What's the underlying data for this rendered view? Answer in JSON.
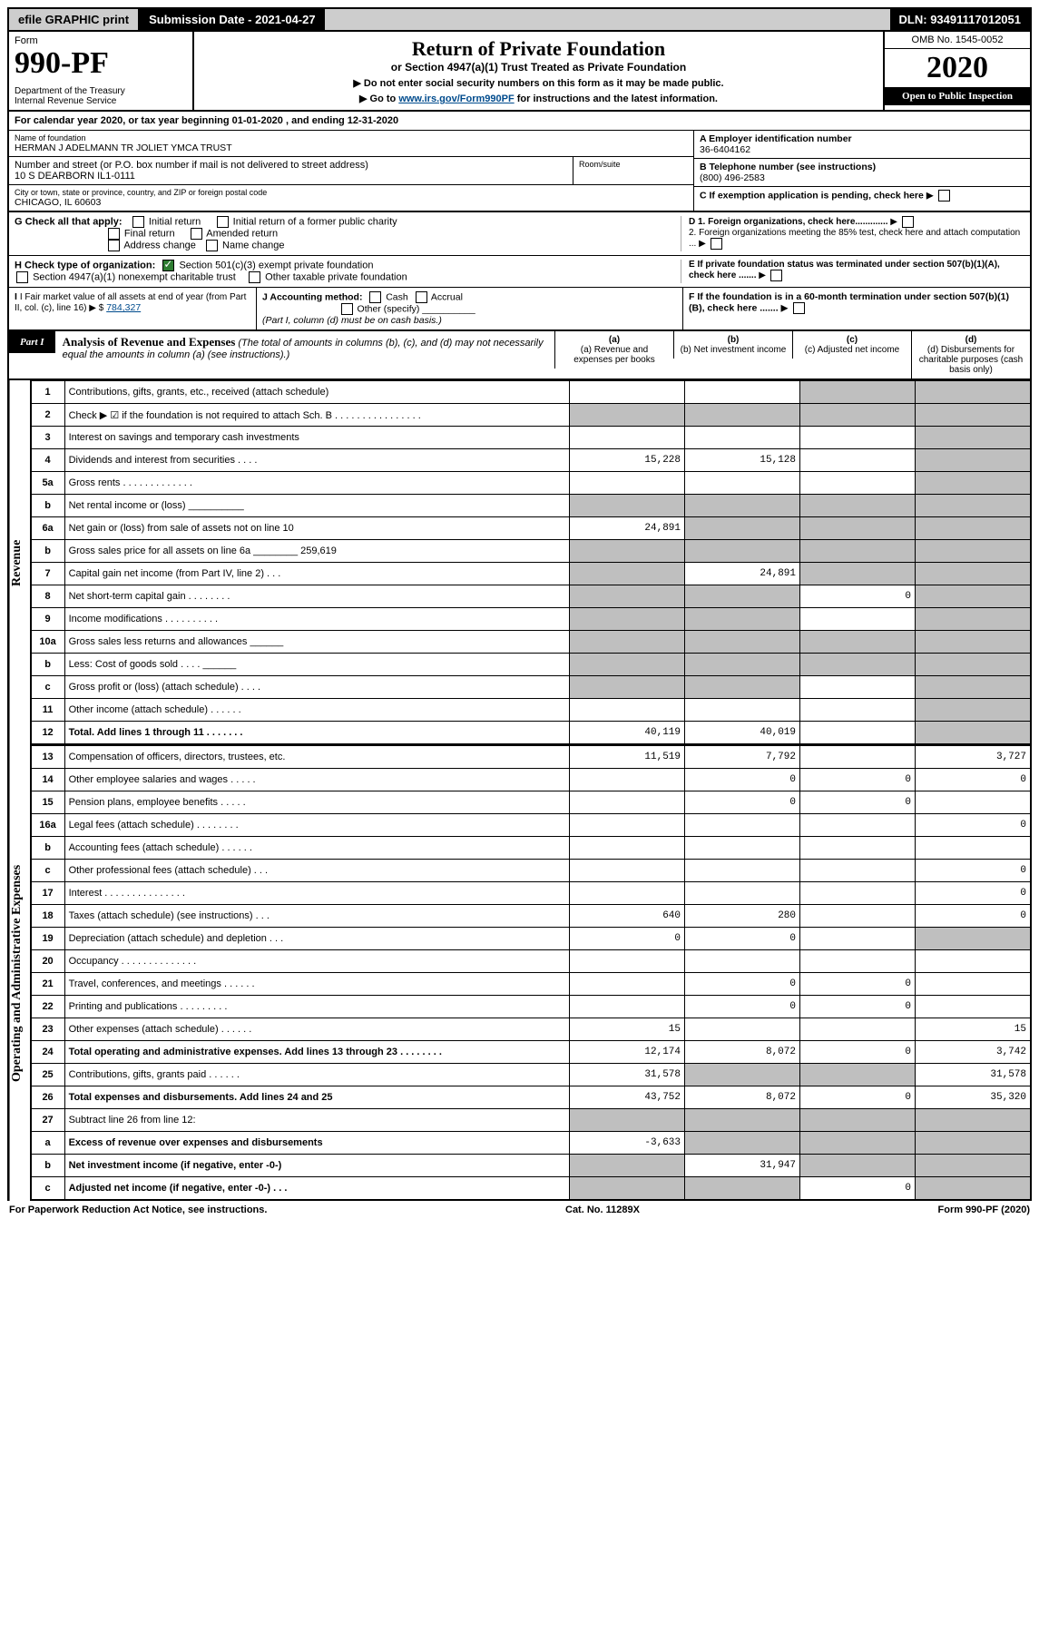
{
  "top": {
    "efile": "efile GRAPHIC print",
    "sub_label": "Submission Date - 2021-04-27",
    "dln": "DLN: 93491117012051"
  },
  "header": {
    "form": "Form",
    "number": "990-PF",
    "dept": "Department of the Treasury\nInternal Revenue Service",
    "title": "Return of Private Foundation",
    "subtitle": "or Section 4947(a)(1) Trust Treated as Private Foundation",
    "instr1": "▶ Do not enter social security numbers on this form as it may be made public.",
    "instr2_pre": "▶ Go to ",
    "instr2_link": "www.irs.gov/Form990PF",
    "instr2_post": " for instructions and the latest information.",
    "omb": "OMB No. 1545-0052",
    "year": "2020",
    "open": "Open to Public Inspection"
  },
  "cal": "For calendar year 2020, or tax year beginning 01-01-2020          , and ending 12-31-2020",
  "info": {
    "name_lbl": "Name of foundation",
    "name": "HERMAN J ADELMANN TR JOLIET YMCA TRUST",
    "addr_lbl": "Number and street (or P.O. box number if mail is not delivered to street address)",
    "addr": "10 S DEARBORN IL1-0111",
    "room_lbl": "Room/suite",
    "city_lbl": "City or town, state or province, country, and ZIP or foreign postal code",
    "city": "CHICAGO, IL  60603",
    "ein_lbl": "A Employer identification number",
    "ein": "36-6404162",
    "tel_lbl": "B Telephone number (see instructions)",
    "tel": "(800) 496-2583",
    "c": "C If exemption application is pending, check here",
    "d1": "D 1. Foreign organizations, check here.............",
    "d2": "2. Foreign organizations meeting the 85% test, check here and attach computation ...",
    "e": "E If private foundation status was terminated under section 507(b)(1)(A), check here .......",
    "f": "F If the foundation is in a 60-month termination under section 507(b)(1)(B), check here ......."
  },
  "g": {
    "label": "G Check all that apply:",
    "opts": [
      "Initial return",
      "Final return",
      "Address change",
      "Initial return of a former public charity",
      "Amended return",
      "Name change"
    ]
  },
  "h": {
    "label": "H Check type of organization:",
    "opt1": "Section 501(c)(3) exempt private foundation",
    "opt2": "Section 4947(a)(1) nonexempt charitable trust",
    "opt3": "Other taxable private foundation"
  },
  "i": {
    "label": "I Fair market value of all assets at end of year (from Part II, col. (c), line 16) ▶ $",
    "val": "784,327"
  },
  "j": {
    "label": "J Accounting method:",
    "cash": "Cash",
    "accrual": "Accrual",
    "other": "Other (specify)",
    "note": "(Part I, column (d) must be on cash basis.)"
  },
  "part1": {
    "tag": "Part I",
    "title": "Analysis of Revenue and Expenses",
    "title_note": "(The total of amounts in columns (b), (c), and (d) may not necessarily equal the amounts in column (a) (see instructions).)",
    "cols": [
      "(a) Revenue and expenses per books",
      "(b) Net investment income",
      "(c) Adjusted net income",
      "(d) Disbursements for charitable purposes (cash basis only)"
    ]
  },
  "sideRev": "Revenue",
  "sideOp": "Operating and Administrative Expenses",
  "rows": [
    {
      "n": "1",
      "d": "Contributions, gifts, grants, etc., received (attach schedule)",
      "a": "",
      "b": "",
      "c": "shade",
      "dd": "shade"
    },
    {
      "n": "2",
      "d": "Check ▶ ☑ if the foundation is not required to attach Sch. B   . . . . . . . . . . . . . . . .",
      "a": "shade",
      "b": "shade",
      "c": "shade",
      "dd": "shade"
    },
    {
      "n": "3",
      "d": "Interest on savings and temporary cash investments",
      "a": "",
      "b": "",
      "c": "",
      "dd": "shade"
    },
    {
      "n": "4",
      "d": "Dividends and interest from securities   . . . .",
      "a": "15,228",
      "b": "15,128",
      "c": "",
      "dd": "shade"
    },
    {
      "n": "5a",
      "d": "Gross rents   . . . . . . . . . . . . .",
      "a": "",
      "b": "",
      "c": "",
      "dd": "shade"
    },
    {
      "n": "b",
      "d": "Net rental income or (loss) __________",
      "a": "shade",
      "b": "shade",
      "c": "shade",
      "dd": "shade"
    },
    {
      "n": "6a",
      "d": "Net gain or (loss) from sale of assets not on line 10",
      "a": "24,891",
      "b": "shade",
      "c": "shade",
      "dd": "shade"
    },
    {
      "n": "b",
      "d": "Gross sales price for all assets on line 6a ________ 259,619",
      "a": "shade",
      "b": "shade",
      "c": "shade",
      "dd": "shade"
    },
    {
      "n": "7",
      "d": "Capital gain net income (from Part IV, line 2)  . . .",
      "a": "shade",
      "b": "24,891",
      "c": "shade",
      "dd": "shade"
    },
    {
      "n": "8",
      "d": "Net short-term capital gain  . . . . . . . .",
      "a": "shade",
      "b": "shade",
      "c": "0",
      "dd": "shade"
    },
    {
      "n": "9",
      "d": "Income modifications  . . . . . . . . . .",
      "a": "shade",
      "b": "shade",
      "c": "",
      "dd": "shade"
    },
    {
      "n": "10a",
      "d": "Gross sales less returns and allowances ______",
      "a": "shade",
      "b": "shade",
      "c": "shade",
      "dd": "shade"
    },
    {
      "n": "b",
      "d": "Less: Cost of goods sold   . . . . ______",
      "a": "shade",
      "b": "shade",
      "c": "shade",
      "dd": "shade"
    },
    {
      "n": "c",
      "d": "Gross profit or (loss) (attach schedule)   . . . .",
      "a": "shade",
      "b": "shade",
      "c": "",
      "dd": "shade"
    },
    {
      "n": "11",
      "d": "Other income (attach schedule)   . . . . . .",
      "a": "",
      "b": "",
      "c": "",
      "dd": "shade"
    },
    {
      "n": "12",
      "d": "Total. Add lines 1 through 11   . . . . . . .",
      "a": "40,119",
      "b": "40,019",
      "c": "",
      "dd": "shade",
      "bold": true
    }
  ],
  "opRows": [
    {
      "n": "13",
      "d": "Compensation of officers, directors, trustees, etc.",
      "a": "11,519",
      "b": "7,792",
      "c": "",
      "dd": "3,727"
    },
    {
      "n": "14",
      "d": "Other employee salaries and wages   . . . . .",
      "a": "",
      "b": "0",
      "c": "0",
      "dd": "0"
    },
    {
      "n": "15",
      "d": "Pension plans, employee benefits   . . . . .",
      "a": "",
      "b": "0",
      "c": "0",
      "dd": ""
    },
    {
      "n": "16a",
      "d": "Legal fees (attach schedule)  . . . . . . . .",
      "a": "",
      "b": "",
      "c": "",
      "dd": "0"
    },
    {
      "n": "b",
      "d": "Accounting fees (attach schedule)  . . . . . .",
      "a": "",
      "b": "",
      "c": "",
      "dd": ""
    },
    {
      "n": "c",
      "d": "Other professional fees (attach schedule)   . . .",
      "a": "",
      "b": "",
      "c": "",
      "dd": "0"
    },
    {
      "n": "17",
      "d": "Interest  . . . . . . . . . . . . . . .",
      "a": "",
      "b": "",
      "c": "",
      "dd": "0"
    },
    {
      "n": "18",
      "d": "Taxes (attach schedule) (see instructions)   . . .",
      "a": "640",
      "b": "280",
      "c": "",
      "dd": "0"
    },
    {
      "n": "19",
      "d": "Depreciation (attach schedule) and depletion  . . .",
      "a": "0",
      "b": "0",
      "c": "",
      "dd": "shade"
    },
    {
      "n": "20",
      "d": "Occupancy  . . . . . . . . . . . . . .",
      "a": "",
      "b": "",
      "c": "",
      "dd": ""
    },
    {
      "n": "21",
      "d": "Travel, conferences, and meetings  . . . . . .",
      "a": "",
      "b": "0",
      "c": "0",
      "dd": ""
    },
    {
      "n": "22",
      "d": "Printing and publications . . . . . . . . .",
      "a": "",
      "b": "0",
      "c": "0",
      "dd": ""
    },
    {
      "n": "23",
      "d": "Other expenses (attach schedule)  . . . . . .",
      "a": "15",
      "b": "",
      "c": "",
      "dd": "15"
    },
    {
      "n": "24",
      "d": "Total operating and administrative expenses. Add lines 13 through 23   . . . . . . . .",
      "a": "12,174",
      "b": "8,072",
      "c": "0",
      "dd": "3,742",
      "bold": true
    },
    {
      "n": "25",
      "d": "Contributions, gifts, grants paid   . . . . . .",
      "a": "31,578",
      "b": "shade",
      "c": "shade",
      "dd": "31,578"
    },
    {
      "n": "26",
      "d": "Total expenses and disbursements. Add lines 24 and 25",
      "a": "43,752",
      "b": "8,072",
      "c": "0",
      "dd": "35,320",
      "bold": true
    },
    {
      "n": "27",
      "d": "Subtract line 26 from line 12:",
      "a": "shade",
      "b": "shade",
      "c": "shade",
      "dd": "shade"
    },
    {
      "n": "a",
      "d": "Excess of revenue over expenses and disbursements",
      "a": "-3,633",
      "b": "shade",
      "c": "shade",
      "dd": "shade",
      "bold": true
    },
    {
      "n": "b",
      "d": "Net investment income (if negative, enter -0-)",
      "a": "shade",
      "b": "31,947",
      "c": "shade",
      "dd": "shade",
      "bold": true
    },
    {
      "n": "c",
      "d": "Adjusted net income (if negative, enter -0-)  . . .",
      "a": "shade",
      "b": "shade",
      "c": "0",
      "dd": "shade",
      "bold": true
    }
  ],
  "footer": {
    "left": "For Paperwork Reduction Act Notice, see instructions.",
    "mid": "Cat. No. 11289X",
    "right": "Form 990-PF (2020)"
  }
}
